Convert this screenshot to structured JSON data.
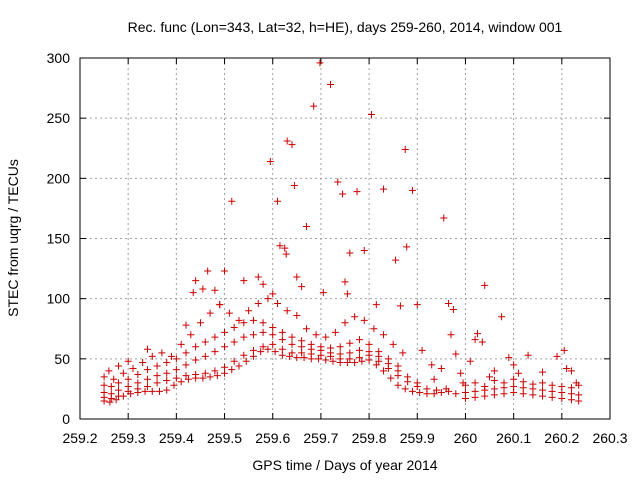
{
  "chart_data": {
    "type": "scatter",
    "title": "Rec. func (Lon=343, Lat=32, h=HE), days 259-260, 2014, window 001",
    "xlabel": "GPS time / Days of year 2014",
    "ylabel": "STEC from uqrg / TECUs",
    "xlim": [
      259.2,
      260.3
    ],
    "ylim": [
      0,
      300
    ],
    "xticks": [
      "259.2",
      "259.3",
      "259.4",
      "259.5",
      "259.6",
      "259.7",
      "259.8",
      "259.9",
      "260",
      "260.1",
      "260.2",
      "260.3"
    ],
    "yticks": [
      "0",
      "50",
      "100",
      "150",
      "200",
      "250",
      "300"
    ],
    "grid": true,
    "marker": "plus",
    "color": "#cc0000",
    "series": [
      {
        "values": [
          [
            259.25,
            15
          ],
          [
            259.262,
            14
          ],
          [
            259.275,
            16
          ],
          [
            259.29,
            19
          ],
          [
            259.305,
            21
          ],
          [
            259.32,
            22
          ],
          [
            259.335,
            23
          ],
          [
            259.35,
            23
          ],
          [
            259.365,
            23
          ],
          [
            259.38,
            24
          ],
          [
            259.395,
            28
          ],
          [
            259.41,
            31
          ],
          [
            259.425,
            33
          ],
          [
            259.44,
            34
          ],
          [
            259.455,
            34
          ],
          [
            259.47,
            35
          ],
          [
            259.485,
            36
          ],
          [
            259.5,
            38
          ],
          [
            259.515,
            41
          ],
          [
            259.53,
            44
          ],
          [
            259.545,
            48
          ],
          [
            259.56,
            52
          ],
          [
            259.575,
            56
          ],
          [
            259.59,
            58
          ],
          [
            259.605,
            56
          ],
          [
            259.62,
            53
          ],
          [
            259.635,
            52
          ],
          [
            259.65,
            51
          ],
          [
            259.665,
            51
          ],
          [
            259.68,
            50
          ],
          [
            259.695,
            50
          ],
          [
            259.71,
            49
          ],
          [
            259.725,
            48
          ],
          [
            259.74,
            47
          ],
          [
            259.755,
            47
          ],
          [
            259.77,
            47
          ],
          [
            259.785,
            48
          ],
          [
            259.8,
            49
          ],
          [
            259.815,
            45
          ],
          [
            259.83,
            40
          ],
          [
            259.845,
            34
          ],
          [
            259.86,
            28
          ],
          [
            259.875,
            25
          ],
          [
            259.89,
            23
          ],
          [
            259.905,
            22
          ],
          [
            259.92,
            21
          ],
          [
            259.935,
            21
          ],
          [
            259.95,
            22
          ],
          [
            259.965,
            23
          ],
          [
            259.98,
            21
          ],
          [
            259.25,
            18
          ],
          [
            259.265,
            17
          ],
          [
            259.28,
            19
          ],
          [
            259.3,
            23
          ],
          [
            259.32,
            25
          ],
          [
            259.34,
            27
          ],
          [
            259.36,
            30
          ],
          [
            259.38,
            32
          ],
          [
            259.4,
            34
          ],
          [
            259.42,
            36
          ],
          [
            259.44,
            37
          ],
          [
            259.46,
            38
          ],
          [
            259.48,
            40
          ],
          [
            259.5,
            43
          ],
          [
            259.52,
            48
          ],
          [
            259.54,
            53
          ],
          [
            259.56,
            57
          ],
          [
            259.58,
            60
          ],
          [
            259.6,
            62
          ],
          [
            259.62,
            58
          ],
          [
            259.64,
            55
          ],
          [
            259.66,
            55
          ],
          [
            259.68,
            54
          ],
          [
            259.7,
            53
          ],
          [
            259.72,
            52
          ],
          [
            259.74,
            50
          ],
          [
            259.76,
            50
          ],
          [
            259.78,
            51
          ],
          [
            259.8,
            53
          ],
          [
            259.82,
            48
          ],
          [
            259.84,
            42
          ],
          [
            259.86,
            36
          ],
          [
            259.88,
            31
          ],
          [
            259.9,
            27
          ],
          [
            259.92,
            25
          ],
          [
            259.94,
            24
          ],
          [
            259.96,
            25
          ],
          [
            259.25,
            22
          ],
          [
            259.265,
            21
          ],
          [
            259.28,
            24
          ],
          [
            259.3,
            27
          ],
          [
            259.32,
            30
          ],
          [
            259.34,
            33
          ],
          [
            259.36,
            36
          ],
          [
            259.38,
            38
          ],
          [
            259.4,
            41
          ],
          [
            259.42,
            45
          ],
          [
            259.44,
            49
          ],
          [
            259.46,
            52
          ],
          [
            259.48,
            56
          ],
          [
            259.5,
            60
          ],
          [
            259.52,
            64
          ],
          [
            259.54,
            68
          ],
          [
            259.56,
            70
          ],
          [
            259.58,
            72
          ],
          [
            259.6,
            70
          ],
          [
            259.62,
            66
          ],
          [
            259.64,
            62
          ],
          [
            259.66,
            60
          ],
          [
            259.68,
            58
          ],
          [
            259.7,
            57
          ],
          [
            259.72,
            55
          ],
          [
            259.74,
            54
          ],
          [
            259.76,
            55
          ],
          [
            259.78,
            57
          ],
          [
            259.8,
            56
          ],
          [
            259.82,
            52
          ],
          [
            259.84,
            46
          ],
          [
            259.86,
            40
          ],
          [
            259.88,
            35
          ],
          [
            259.9,
            30
          ],
          [
            259.25,
            28
          ],
          [
            259.265,
            27
          ],
          [
            259.28,
            30
          ],
          [
            259.3,
            33
          ],
          [
            259.32,
            37
          ],
          [
            259.34,
            41
          ],
          [
            259.36,
            44
          ],
          [
            259.38,
            47
          ],
          [
            259.4,
            50
          ],
          [
            259.42,
            55
          ],
          [
            259.44,
            60
          ],
          [
            259.46,
            64
          ],
          [
            259.48,
            68
          ],
          [
            259.5,
            72
          ],
          [
            259.52,
            76
          ],
          [
            259.54,
            80
          ],
          [
            259.56,
            82
          ],
          [
            259.58,
            80
          ],
          [
            259.6,
            76
          ],
          [
            259.62,
            72
          ],
          [
            259.64,
            68
          ],
          [
            259.66,
            65
          ],
          [
            259.68,
            62
          ],
          [
            259.7,
            60
          ],
          [
            259.72,
            59
          ],
          [
            259.74,
            60
          ],
          [
            259.76,
            63
          ],
          [
            259.78,
            66
          ],
          [
            259.8,
            62
          ],
          [
            259.82,
            56
          ],
          [
            259.84,
            50
          ],
          [
            259.86,
            44
          ],
          [
            259.25,
            35
          ],
          [
            259.27,
            33
          ],
          [
            259.29,
            38
          ],
          [
            259.31,
            42
          ],
          [
            259.33,
            47
          ],
          [
            259.35,
            52
          ],
          [
            259.37,
            55
          ],
          [
            259.39,
            52
          ],
          [
            259.41,
            62
          ],
          [
            259.43,
            70
          ],
          [
            259.45,
            80
          ],
          [
            259.47,
            88
          ],
          [
            259.49,
            95
          ],
          [
            259.51,
            88
          ],
          [
            259.53,
            82
          ],
          [
            259.55,
            90
          ],
          [
            259.57,
            96
          ],
          [
            259.59,
            100
          ],
          [
            259.61,
            96
          ],
          [
            259.63,
            90
          ],
          [
            259.65,
            86
          ],
          [
            259.67,
            75
          ],
          [
            259.69,
            70
          ],
          [
            259.71,
            68
          ],
          [
            259.73,
            72
          ],
          [
            259.75,
            80
          ],
          [
            259.77,
            85
          ],
          [
            259.79,
            82
          ],
          [
            259.81,
            75
          ],
          [
            259.83,
            70
          ],
          [
            259.85,
            62
          ],
          [
            259.87,
            55
          ],
          [
            259.26,
            40
          ],
          [
            259.28,
            44
          ],
          [
            259.3,
            48
          ],
          [
            259.34,
            58
          ],
          [
            259.42,
            78
          ],
          [
            259.435,
            105
          ],
          [
            259.44,
            115
          ],
          [
            259.455,
            108
          ],
          [
            259.465,
            123
          ],
          [
            259.48,
            107
          ],
          [
            259.49,
            95
          ],
          [
            259.5,
            123
          ],
          [
            259.515,
            181
          ],
          [
            259.54,
            115
          ],
          [
            259.57,
            118
          ],
          [
            259.58,
            112
          ],
          [
            259.595,
            214
          ],
          [
            259.6,
            104
          ],
          [
            259.61,
            181
          ],
          [
            259.615,
            144
          ],
          [
            259.625,
            142
          ],
          [
            259.628,
            137
          ],
          [
            259.63,
            231
          ],
          [
            259.64,
            228
          ],
          [
            259.645,
            194
          ],
          [
            259.65,
            118
          ],
          [
            259.66,
            110
          ],
          [
            259.67,
            160
          ],
          [
            259.685,
            260
          ],
          [
            259.698,
            296
          ],
          [
            259.705,
            105
          ],
          [
            259.72,
            278
          ],
          [
            259.735,
            197
          ],
          [
            259.745,
            187
          ],
          [
            259.75,
            114
          ],
          [
            259.755,
            104
          ],
          [
            259.76,
            138
          ],
          [
            259.775,
            189
          ],
          [
            259.79,
            140
          ],
          [
            259.805,
            253
          ],
          [
            259.815,
            95
          ],
          [
            259.83,
            191
          ],
          [
            259.855,
            132
          ],
          [
            259.865,
            94
          ],
          [
            259.875,
            224
          ],
          [
            259.878,
            143
          ],
          [
            259.89,
            190
          ],
          [
            259.9,
            95
          ],
          [
            259.91,
            57
          ],
          [
            259.955,
            167
          ],
          [
            259.965,
            96
          ],
          [
            259.975,
            91
          ],
          [
            259.98,
            54
          ],
          [
            259.93,
            45
          ],
          [
            259.935,
            33
          ],
          [
            259.95,
            42
          ],
          [
            259.97,
            70
          ],
          [
            260.0,
            17
          ],
          [
            260.02,
            18
          ],
          [
            260.04,
            19
          ],
          [
            260.06,
            20
          ],
          [
            260.08,
            21
          ],
          [
            260.1,
            22
          ],
          [
            260.12,
            21
          ],
          [
            260.14,
            20
          ],
          [
            260.16,
            19
          ],
          [
            260.18,
            18
          ],
          [
            260.2,
            17
          ],
          [
            260.22,
            16
          ],
          [
            260.235,
            15
          ],
          [
            260.0,
            22
          ],
          [
            260.02,
            23
          ],
          [
            260.04,
            24
          ],
          [
            260.06,
            25
          ],
          [
            260.08,
            26
          ],
          [
            260.1,
            27
          ],
          [
            260.12,
            26
          ],
          [
            260.14,
            25
          ],
          [
            260.16,
            24
          ],
          [
            260.18,
            23
          ],
          [
            260.2,
            22
          ],
          [
            260.22,
            21
          ],
          [
            260.235,
            20
          ],
          [
            260.0,
            28
          ],
          [
            260.02,
            30
          ],
          [
            260.04,
            27
          ],
          [
            260.06,
            32
          ],
          [
            260.08,
            30
          ],
          [
            260.1,
            33
          ],
          [
            260.12,
            31
          ],
          [
            260.14,
            29
          ],
          [
            260.16,
            30
          ],
          [
            260.18,
            28
          ],
          [
            260.2,
            27
          ],
          [
            260.22,
            26
          ],
          [
            260.235,
            28
          ],
          [
            260.01,
            48
          ],
          [
            260.02,
            66
          ],
          [
            260.025,
            71
          ],
          [
            260.035,
            64
          ],
          [
            260.04,
            111
          ],
          [
            260.06,
            40
          ],
          [
            260.075,
            85
          ],
          [
            260.09,
            51
          ],
          [
            260.1,
            45
          ],
          [
            260.13,
            53
          ],
          [
            260.16,
            39
          ],
          [
            260.19,
            52
          ],
          [
            260.205,
            57
          ],
          [
            260.21,
            42
          ],
          [
            260.22,
            40
          ],
          [
            260.23,
            30
          ],
          [
            260.11,
            38
          ],
          [
            260.05,
            35
          ],
          [
            259.99,
            38
          ],
          [
            259.995,
            30
          ]
        ]
      }
    ]
  }
}
